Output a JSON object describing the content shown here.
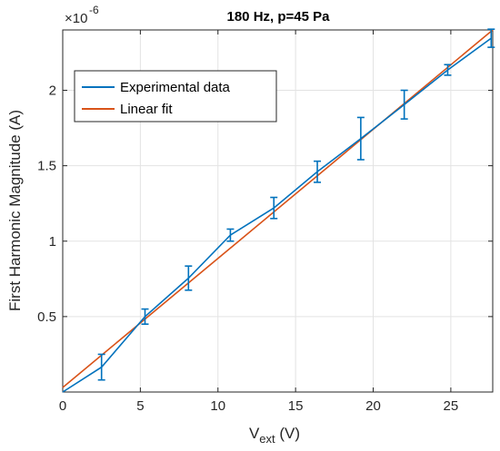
{
  "chart_data": {
    "type": "line",
    "title": "180 Hz, p=45 Pa",
    "xlabel": {
      "main": "V",
      "sub": "ext",
      "unit": " (V)"
    },
    "ylabel": "First Harmonic Magnitude (A)",
    "y_exponent": "×10",
    "y_exponent_power": "-6",
    "xlim": [
      0,
      27.7
    ],
    "ylim": [
      0,
      2.4
    ],
    "xticks": [
      0,
      5,
      10,
      15,
      20,
      25
    ],
    "xtick_labels": [
      "0",
      "5",
      "10",
      "15",
      "20",
      "25"
    ],
    "yticks": [
      0.5,
      1,
      1.5,
      2
    ],
    "ytick_labels": [
      "0.5",
      "1",
      "1.5",
      "2"
    ],
    "grid": true,
    "legend_position": "top-left",
    "series": [
      {
        "name": "Experimental data",
        "color": "#0072BD",
        "x": [
          0,
          2.5,
          5.3,
          8.1,
          10.8,
          13.6,
          16.4,
          19.2,
          22.0,
          24.8,
          27.6
        ],
        "y": [
          0.0,
          0.165,
          0.5,
          0.755,
          1.04,
          1.22,
          1.46,
          1.68,
          1.905,
          2.135,
          2.345
        ],
        "err": [
          0.0,
          0.085,
          0.05,
          0.08,
          0.04,
          0.07,
          0.07,
          0.14,
          0.095,
          0.035,
          0.06
        ]
      },
      {
        "name": "Linear fit",
        "color": "#D95319",
        "x": [
          0,
          27.7
        ],
        "y": [
          0.03,
          2.4
        ]
      }
    ]
  }
}
